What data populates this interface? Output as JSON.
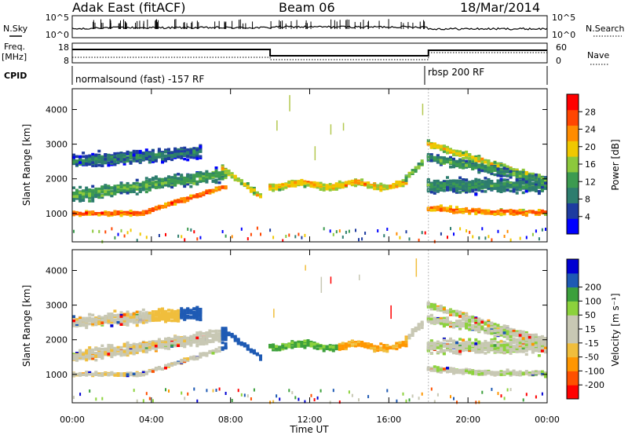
{
  "header": {
    "station": "Adak East (fitACF)",
    "beam": "Beam 06",
    "date": "18/Mar/2014"
  },
  "strip": {
    "nsky_label": "N.Sky",
    "nsearch_label": "N.Search",
    "nsky_ticks": [
      "10^5",
      "10^0"
    ],
    "nsearch_ticks": [
      "10^5",
      "10^0"
    ],
    "freq_label_top": "Freq.",
    "freq_label_unit": "[MHz]",
    "freq_ticks": [
      "18",
      "8"
    ],
    "nave_label": "Nave",
    "nave_ticks": [
      "60",
      "0"
    ],
    "cpid_label": "CPID",
    "cpid_segments": [
      {
        "text": "normalsound (fast) -157 RF"
      },
      {
        "text": "rbsp 200 RF"
      }
    ]
  },
  "colors": {
    "power": [
      "#0000ff",
      "#1e3ca0",
      "#2d7d6e",
      "#3c9b50",
      "#8cc83c",
      "#f0c800",
      "#ff8c00",
      "#ff4600",
      "#ff0000"
    ],
    "velocity": [
      "#ff0000",
      "#ff5000",
      "#ff9600",
      "#f0be3c",
      "#c8c8b4",
      "#c8c8b4",
      "#8cd23c",
      "#3ca03c",
      "#1e5ab4",
      "#0000d2"
    ]
  },
  "chart_data": [
    {
      "type": "heatmap",
      "panel": "power",
      "ylabel": "Slant Range [km]",
      "ylim": [
        180,
        4600
      ],
      "yticks": [
        "1000",
        "2000",
        "3000",
        "4000"
      ],
      "xlim_hours": [
        0,
        24
      ],
      "xticks": [
        "00:00",
        "04:00",
        "08:00",
        "12:00",
        "16:00",
        "20:00",
        "00:00"
      ],
      "colorbar_label": "Power [dB]",
      "colorbar_ticks": [
        "4",
        "8",
        "12",
        "16",
        "20",
        "24",
        "28"
      ],
      "colorbar_range": [
        0,
        32
      ]
    },
    {
      "type": "heatmap",
      "panel": "velocity",
      "ylabel": "Slant Range [km]",
      "ylim": [
        180,
        4600
      ],
      "yticks": [
        "1000",
        "2000",
        "3000",
        "4000"
      ],
      "xlim_hours": [
        0,
        24
      ],
      "xticks": [
        "00:00",
        "04:00",
        "08:00",
        "12:00",
        "16:00",
        "20:00",
        "00:00"
      ],
      "xlabel": "Time UT",
      "colorbar_label": "Velocity [m s⁻¹]",
      "colorbar_ticks": [
        "200",
        "100",
        "50",
        "15",
        "-15",
        "-50",
        "-100",
        "-200"
      ]
    }
  ]
}
